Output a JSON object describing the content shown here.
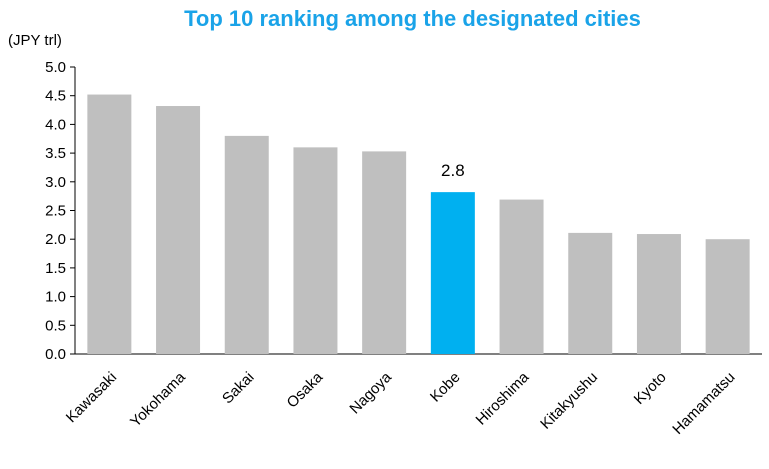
{
  "chart_data": {
    "type": "bar",
    "title": "Top 10 ranking among the designated cities",
    "unit_label": "(JPY trl)",
    "categories": [
      "Kawasaki",
      "Yokohama",
      "Sakai",
      "Osaka",
      "Nagoya",
      "Kobe",
      "Hiroshima",
      "Kitakyushu",
      "Kyoto",
      "Hamamatsu"
    ],
    "values": [
      4.52,
      4.32,
      3.8,
      3.6,
      3.53,
      2.82,
      2.69,
      2.11,
      2.09,
      2.0
    ],
    "highlight_index": 5,
    "data_labels": [
      {
        "index": 5,
        "text": "2.8"
      }
    ],
    "ylim": [
      0,
      5.0
    ],
    "yticks": [
      "0.0",
      "0.5",
      "1.0",
      "1.5",
      "2.0",
      "2.5",
      "3.0",
      "3.5",
      "4.0",
      "4.5",
      "5.0"
    ],
    "xlabel": "",
    "ylabel": "",
    "grid": false,
    "legend": "none",
    "colors": {
      "bar": "#bfbfbf",
      "highlight": "#00b0f0",
      "title": "#1aa3e8",
      "axis": "#000000"
    }
  }
}
